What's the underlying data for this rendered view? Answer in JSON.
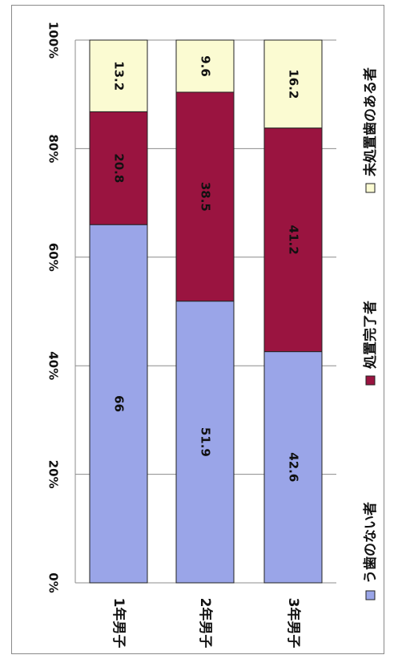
{
  "chart_data": {
    "type": "bar",
    "orientation": "horizontal",
    "stacked": true,
    "percent_axis": true,
    "categories": [
      "1年男子",
      "2年男子",
      "3年男子"
    ],
    "series": [
      {
        "name": "う歯のない者",
        "values": [
          66,
          51.9,
          42.6
        ],
        "color": "#9aa5e8"
      },
      {
        "name": "処置完了者",
        "values": [
          20.8,
          38.5,
          41.2
        ],
        "color": "#9a1440"
      },
      {
        "name": "未処置歯のある者",
        "values": [
          13.2,
          9.6,
          16.2
        ],
        "color": "#fbfbd2"
      }
    ],
    "xlim": [
      0,
      100
    ],
    "ticks": [
      "0%",
      "20%",
      "40%",
      "60%",
      "80%",
      "100%"
    ],
    "grid": true,
    "legend_position": "bottom"
  }
}
